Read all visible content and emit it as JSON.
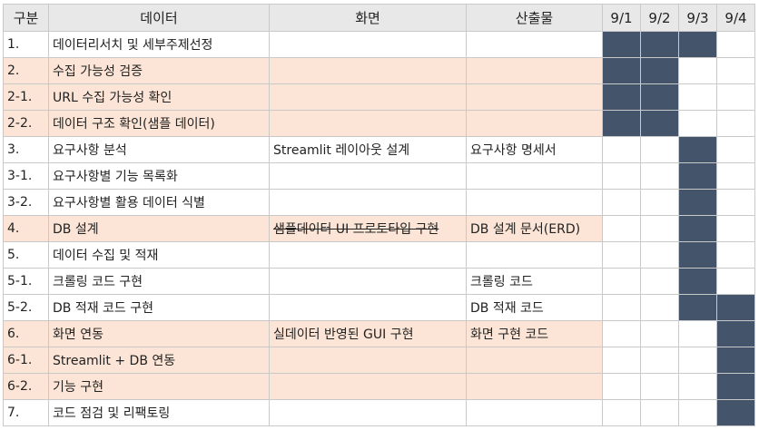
{
  "table": {
    "headers": [
      "구분",
      "데이터",
      "화면",
      "산출물",
      "9/1",
      "9/2",
      "9/3",
      "9/4"
    ],
    "rows": [
      {
        "num": "1.",
        "data": "데이터리서치 및 세부주제선정",
        "screen": "",
        "output": "",
        "hl": false,
        "days": [
          1,
          1,
          1,
          0
        ]
      },
      {
        "num": "2.",
        "data": "수집 가능성 검증",
        "screen": "",
        "output": "",
        "hl": true,
        "days": [
          1,
          1,
          0,
          0
        ]
      },
      {
        "num": "2-1.",
        "data": "URL 수집 가능성 확인",
        "screen": "",
        "output": "",
        "hl": true,
        "days": [
          1,
          1,
          0,
          0
        ]
      },
      {
        "num": "2-2.",
        "data": "데이터 구조 확인(샘플 데이터)",
        "screen": "",
        "output": "",
        "hl": true,
        "days": [
          1,
          1,
          0,
          0
        ]
      },
      {
        "num": "3.",
        "data": "요구사항 분석",
        "screen": "Streamlit 레이아웃 설계",
        "output": "요구사항 명세서",
        "hl": false,
        "days": [
          0,
          0,
          1,
          0
        ]
      },
      {
        "num": "3-1.",
        "data": "요구사항별 기능 목록화",
        "screen": "",
        "output": "",
        "hl": false,
        "days": [
          0,
          0,
          1,
          0
        ]
      },
      {
        "num": "3-2.",
        "data": "요구사항별 활용 데이터 식별",
        "screen": "",
        "output": "",
        "hl": false,
        "days": [
          0,
          0,
          1,
          0
        ]
      },
      {
        "num": "4.",
        "data": "DB 설계",
        "screen": "샘플데이터 UI 프로토타입 구현",
        "screen_strike": true,
        "output": "DB 설계 문서(ERD)",
        "hl": true,
        "days": [
          0,
          0,
          1,
          0
        ]
      },
      {
        "num": "5.",
        "data": "데이터 수집 및 적재",
        "screen": "",
        "output": "",
        "hl": false,
        "days": [
          0,
          0,
          1,
          0
        ]
      },
      {
        "num": "5-1.",
        "data": "크롤링 코드 구현",
        "screen": "",
        "output": "크롤링 코드",
        "hl": false,
        "days": [
          0,
          0,
          1,
          0
        ]
      },
      {
        "num": "5-2.",
        "data": "DB 적재 코드 구현",
        "screen": "",
        "output": "DB 적재 코드",
        "hl": false,
        "days": [
          0,
          0,
          1,
          1
        ]
      },
      {
        "num": "6.",
        "data": "화면 연동",
        "screen": "실데이터 반영된 GUI 구현",
        "output": "화면 구현 코드",
        "hl": true,
        "days": [
          0,
          0,
          0,
          1
        ]
      },
      {
        "num": "6-1.",
        "data": "Streamlit + DB 연동",
        "screen": "",
        "output": "",
        "hl": true,
        "days": [
          0,
          0,
          0,
          1
        ]
      },
      {
        "num": "6-2.",
        "data": "기능 구현",
        "screen": "",
        "output": "",
        "hl": true,
        "days": [
          0,
          0,
          0,
          1
        ]
      },
      {
        "num": "7.",
        "data": "코드 점검 및 리팩토링",
        "screen": "",
        "output": "",
        "hl": false,
        "days": [
          0,
          0,
          0,
          1
        ]
      }
    ]
  },
  "colors": {
    "filled": "#44546a",
    "highlight": "#fce5d6",
    "header_bg": "#e8e8e8"
  }
}
